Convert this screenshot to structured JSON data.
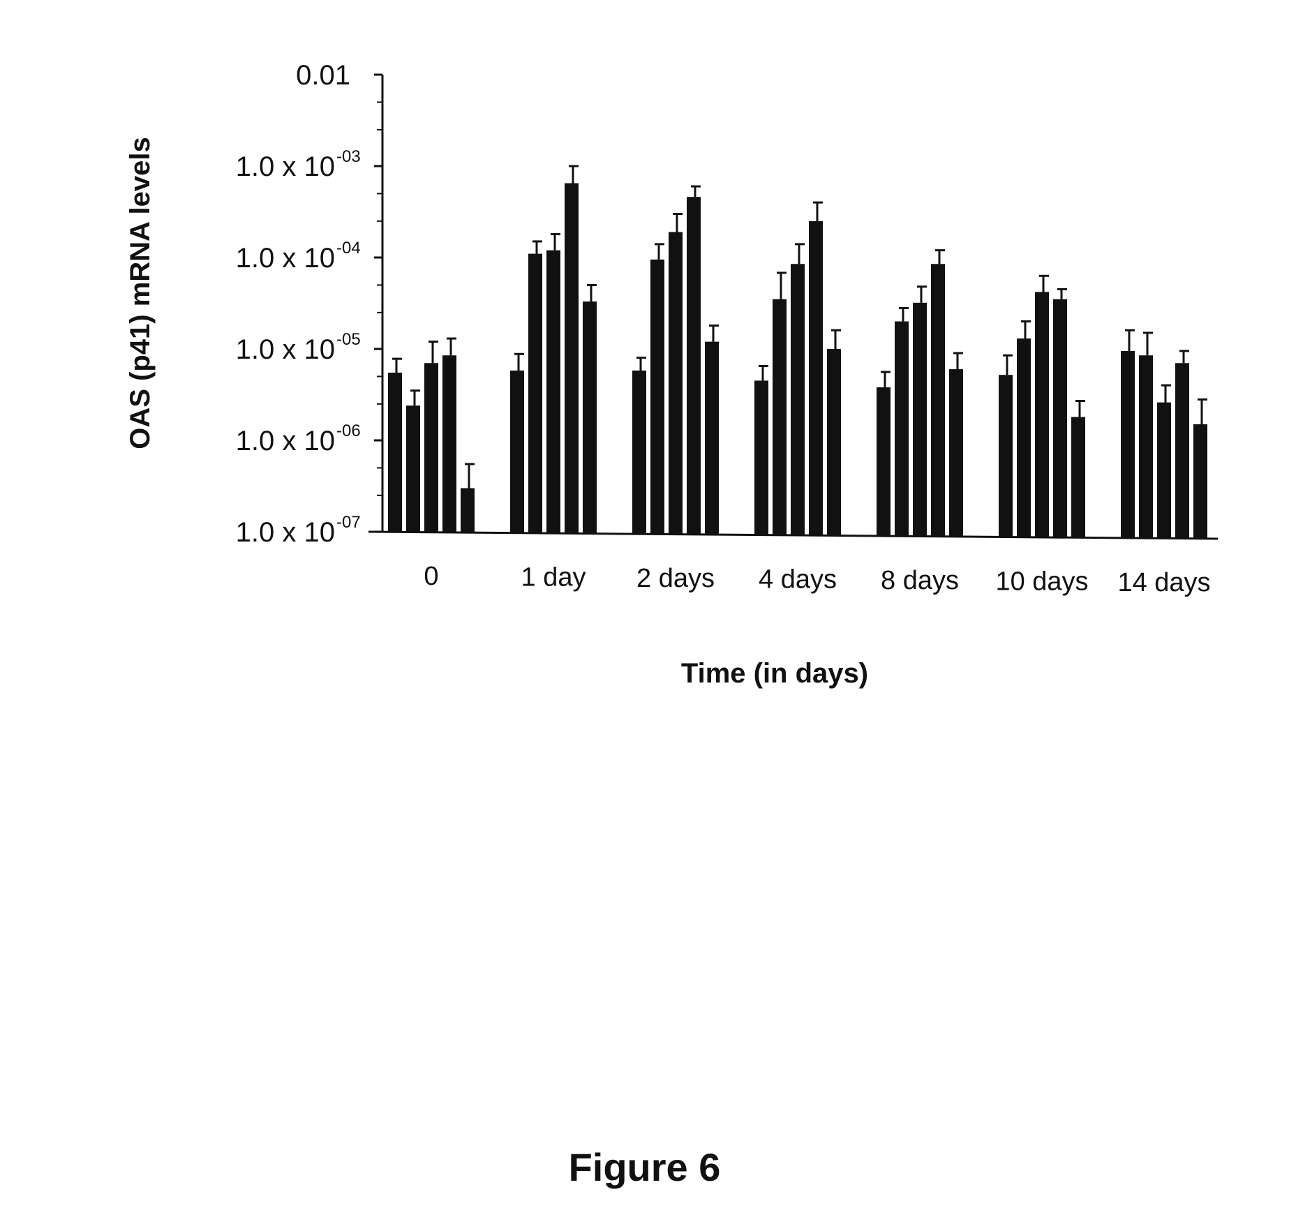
{
  "figure": {
    "caption": "Figure 6"
  },
  "chart_data": {
    "type": "bar",
    "xlabel": "Time (in days)",
    "ylabel": "OAS (p41) mRNA levels",
    "yscale": "log",
    "ylim": [
      1e-07,
      0.01
    ],
    "yticks": [
      {
        "value": 1e-07,
        "mantissa": "1.0 x 10",
        "exp": "-07"
      },
      {
        "value": 1e-06,
        "mantissa": "1.0 x 10",
        "exp": "-06"
      },
      {
        "value": 1e-05,
        "mantissa": "1.0 x 10",
        "exp": "-05"
      },
      {
        "value": 0.0001,
        "mantissa": "1.0 x 10",
        "exp": "-04"
      },
      {
        "value": 0.001,
        "mantissa": "1.0 x 10",
        "exp": "-03"
      },
      {
        "value": 0.01,
        "mantissa": "0.01",
        "exp": ""
      }
    ],
    "grid": false,
    "legend": "none",
    "bar_color": "#111111",
    "categories": [
      "0",
      "1 day",
      "2 days",
      "4 days",
      "8 days",
      "10 days",
      "14 days"
    ],
    "groups": [
      {
        "values": [
          5.5e-06,
          2.4e-06,
          7e-06,
          8.5e-06,
          3e-07
        ],
        "errors": [
          7.8e-06,
          3.5e-06,
          1.2e-05,
          1.3e-05,
          5.5e-07
        ]
      },
      {
        "values": [
          5.8e-06,
          0.00011,
          0.00012,
          0.00065,
          3.3e-05
        ],
        "errors": [
          8.8e-06,
          0.00015,
          0.00018,
          0.001,
          5e-05
        ]
      },
      {
        "values": [
          5.8e-06,
          9.5e-05,
          0.00019,
          0.00046,
          1.2e-05
        ],
        "errors": [
          8e-06,
          0.00014,
          0.0003,
          0.0006,
          1.8e-05
        ]
      },
      {
        "values": [
          4.5e-06,
          3.5e-05,
          8.5e-05,
          0.00025,
          1e-05
        ],
        "errors": [
          6.5e-06,
          6.8e-05,
          0.00014,
          0.0004,
          1.6e-05
        ]
      },
      {
        "values": [
          3.8e-06,
          2e-05,
          3.2e-05,
          8.5e-05,
          6e-06
        ],
        "errors": [
          5.6e-06,
          2.8e-05,
          4.8e-05,
          0.00012,
          9e-06
        ]
      },
      {
        "values": [
          5.2e-06,
          1.3e-05,
          4.2e-05,
          3.5e-05,
          1.8e-06
        ],
        "errors": [
          8.5e-06,
          2e-05,
          6.3e-05,
          4.5e-05,
          2.7e-06
        ]
      },
      {
        "values": [
          9.5e-06,
          8.5e-06,
          2.6e-06,
          7e-06,
          1.5e-06
        ],
        "errors": [
          1.6e-05,
          1.5e-05,
          4e-06,
          9.5e-06,
          2.8e-06
        ]
      }
    ]
  }
}
